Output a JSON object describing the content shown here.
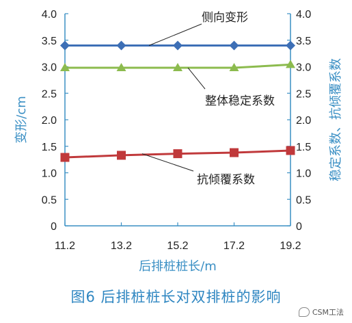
{
  "chart_data": {
    "type": "line",
    "x": [
      11.2,
      13.2,
      15.2,
      17.2,
      19.2
    ],
    "xlabel": "后排桩桩长/m",
    "ylabel_left": "变形/cm",
    "ylabel_right": "稳定系数、抗倾覆系数",
    "ylim": [
      0,
      4.0
    ],
    "yticks": [
      "0",
      "0.5",
      "1.0",
      "1.5",
      "2.0",
      "2.5",
      "3.0",
      "3.5",
      "4.0"
    ],
    "xticks": [
      "11.2",
      "13.2",
      "15.2",
      "17.2",
      "19.2"
    ],
    "grid": false,
    "series": [
      {
        "name": "侧向变形",
        "axis": "left",
        "color": "#3d6fb6",
        "marker": "diamond",
        "values": [
          3.4,
          3.4,
          3.4,
          3.4,
          3.4
        ]
      },
      {
        "name": "整体稳定系数",
        "axis": "right",
        "color": "#8cbb4e",
        "marker": "triangle",
        "values": [
          2.98,
          2.98,
          2.98,
          2.98,
          3.04
        ]
      },
      {
        "name": "抗倾覆系数",
        "axis": "right",
        "color": "#c0393b",
        "marker": "square",
        "values": [
          1.29,
          1.33,
          1.36,
          1.38,
          1.42
        ]
      }
    ],
    "axis_color": "#3a8fc4"
  },
  "caption": "图6  后排桩桩长对双排桩的影响",
  "watermark": "CSM工法"
}
